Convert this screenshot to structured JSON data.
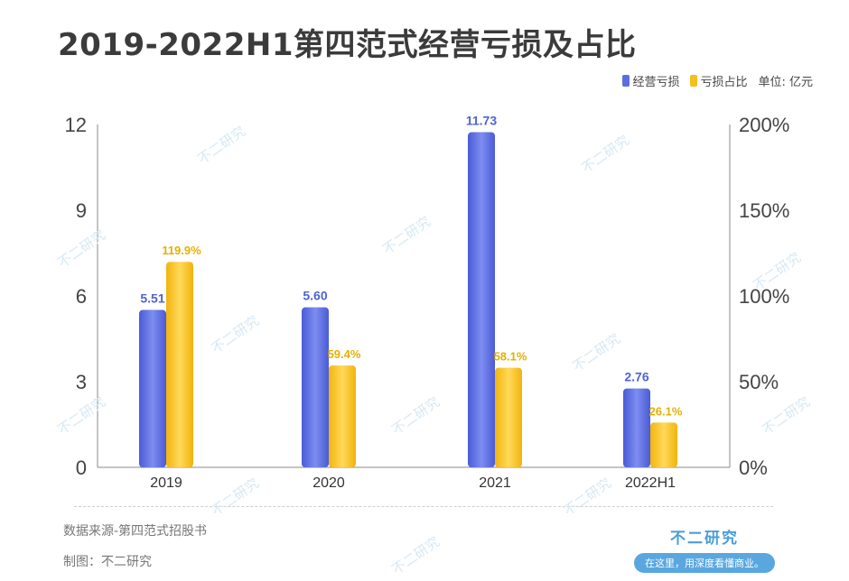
{
  "title": "2019-2022H1第四范式经营亏损及占比",
  "legend": {
    "loss_label": "经营亏损",
    "ratio_label": "亏损占比",
    "unit": "单位: 亿元"
  },
  "colors": {
    "loss": "#5b6ee1",
    "ratio": "#f5bf1d",
    "loss_text": "#4f63d2",
    "ratio_text": "#e6b000"
  },
  "chart_data": {
    "type": "bar",
    "categories": [
      "2019",
      "2020",
      "2021",
      "2022H1"
    ],
    "series": [
      {
        "name": "经营亏损",
        "values": [
          5.51,
          5.6,
          11.73,
          2.76
        ],
        "labels": [
          "5.51",
          "5.60",
          "11.73",
          "2.76"
        ],
        "axis": "left"
      },
      {
        "name": "亏损占比",
        "values": [
          119.9,
          59.4,
          58.1,
          26.1
        ],
        "labels": [
          "119.9%",
          "59.4%",
          "58.1%",
          "26.1%"
        ],
        "axis": "right"
      }
    ],
    "y_left": {
      "ticks": [
        "0",
        "3",
        "6",
        "9",
        "12"
      ],
      "range": [
        0,
        12
      ]
    },
    "y_right": {
      "ticks": [
        "0%",
        "50%",
        "100%",
        "150%",
        "200%"
      ],
      "range": [
        0,
        200
      ]
    },
    "grid": false,
    "legend_position": "top-right"
  },
  "footer": {
    "source": "数据来源-第四范式招股书",
    "credit": "制图：不二研究",
    "brand_name": "不二研究",
    "brand_slogan": "在这里，用深度看懂商业。"
  },
  "watermark": "不二研究"
}
